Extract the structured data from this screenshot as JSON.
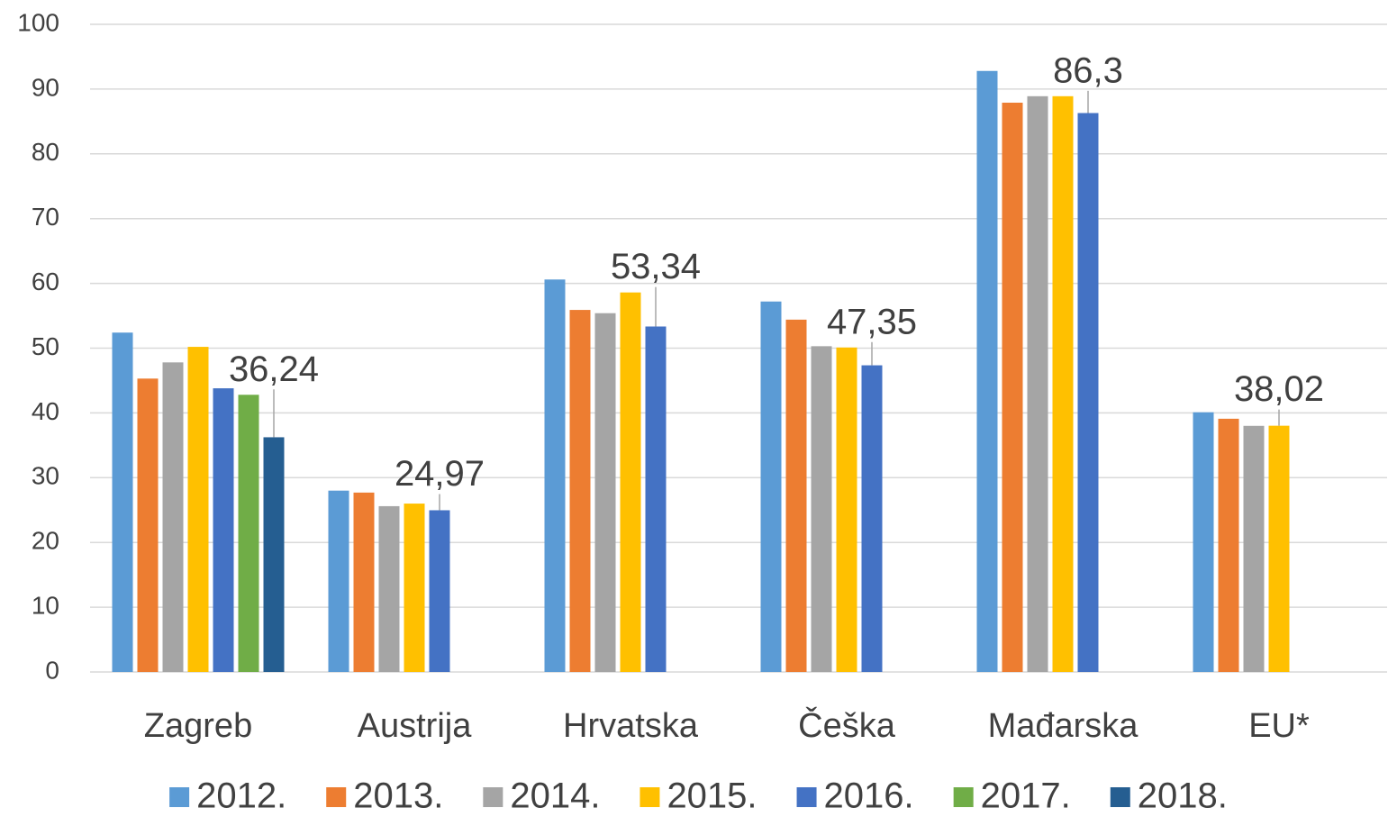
{
  "chart_data": {
    "type": "bar",
    "categories": [
      "Zagreb",
      "Austrija",
      "Hrvatska",
      "Češka",
      "Mađarska",
      "EU*"
    ],
    "series": [
      {
        "name": "2012.",
        "color": "#5b9bd5",
        "values": [
          52.4,
          28.0,
          60.6,
          57.2,
          92.8,
          40.1
        ]
      },
      {
        "name": "2013.",
        "color": "#ed7d31",
        "values": [
          45.3,
          27.7,
          55.9,
          54.4,
          87.9,
          39.1
        ]
      },
      {
        "name": "2014.",
        "color": "#a5a5a5",
        "values": [
          47.8,
          25.6,
          55.4,
          50.3,
          88.9,
          38.0
        ]
      },
      {
        "name": "2015.",
        "color": "#ffc000",
        "values": [
          50.2,
          26.0,
          58.6,
          50.1,
          88.9,
          38.02
        ],
        "value_labels": [
          null,
          null,
          null,
          null,
          null,
          "38,02"
        ]
      },
      {
        "name": "2016.",
        "color": "#4472c4",
        "values": [
          43.8,
          24.97,
          53.34,
          47.35,
          86.3,
          null
        ],
        "value_labels": [
          null,
          "24,97",
          "53,34",
          "47,35",
          "86,3",
          null
        ]
      },
      {
        "name": "2017.",
        "color": "#70ad47",
        "values": [
          42.8,
          null,
          null,
          null,
          null,
          null
        ]
      },
      {
        "name": "2018.",
        "color": "#255e91",
        "values": [
          36.24,
          null,
          null,
          null,
          null,
          null
        ],
        "value_labels": [
          "36,24",
          null,
          null,
          null,
          null,
          null
        ]
      }
    ],
    "ylim": [
      0,
      100
    ],
    "yticks": [
      0,
      10,
      20,
      30,
      40,
      50,
      60,
      70,
      80,
      90,
      100
    ],
    "grid": true,
    "legend": "bottom"
  }
}
